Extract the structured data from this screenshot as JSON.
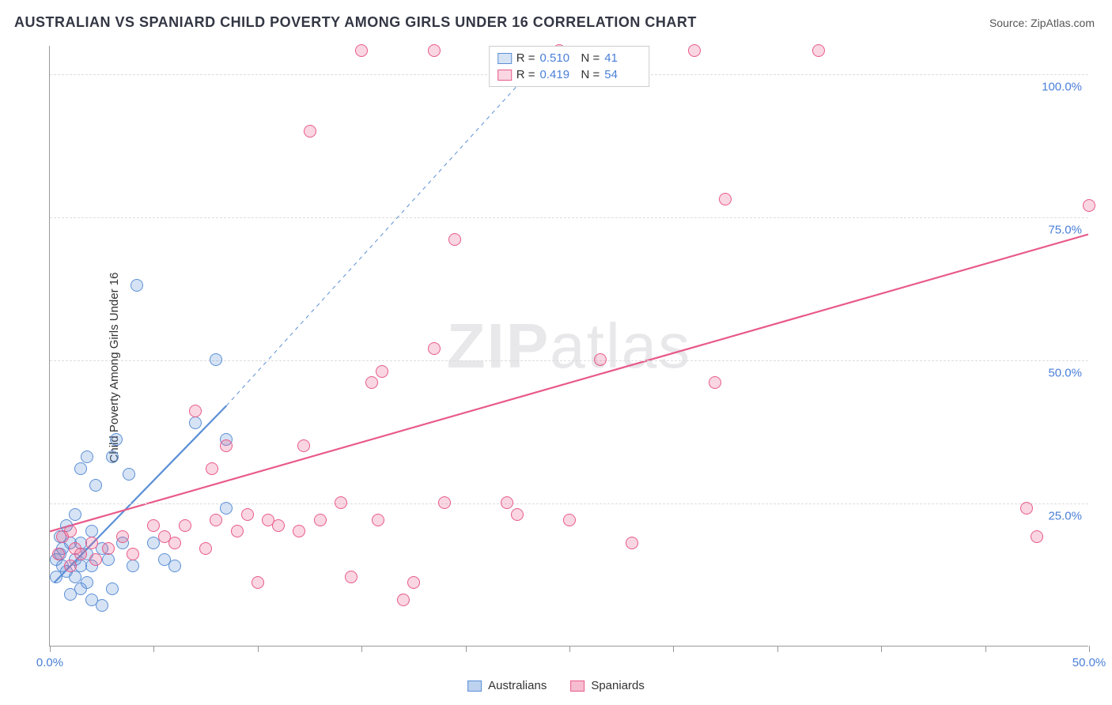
{
  "title": "AUSTRALIAN VS SPANIARD CHILD POVERTY AMONG GIRLS UNDER 16 CORRELATION CHART",
  "source_prefix": "Source: ",
  "source": "ZipAtlas.com",
  "watermark_a": "ZIP",
  "watermark_b": "atlas",
  "chart": {
    "type": "scatter",
    "ylabel": "Child Poverty Among Girls Under 16",
    "xlim": [
      0,
      50
    ],
    "ylim": [
      0,
      105
    ],
    "xtick_step": 5,
    "xtick_labels": {
      "0": "0.0%",
      "50": "50.0%"
    },
    "ytick_step": 25,
    "ytick_labels": {
      "25": "25.0%",
      "50": "50.0%",
      "75": "75.0%",
      "100": "100.0%"
    },
    "background_color": "#ffffff",
    "grid_color": "#dddddd",
    "marker_radius": 8,
    "marker_opacity_fill": 0.25,
    "marker_border_width": 1.2,
    "series": [
      {
        "name": "Australians",
        "color": "#5b8fd6",
        "fill": "rgba(91,143,214,0.25)",
        "r_label": "R =",
        "r": "0.510",
        "n_label": "N =",
        "n": "41",
        "trend": {
          "x1": 0.2,
          "y1": 11,
          "x2": 8.5,
          "y2": 42,
          "stroke_width": 2.2,
          "dash": "none"
        },
        "trend_ext": {
          "x1": 8.5,
          "y1": 42,
          "x2": 24,
          "y2": 104,
          "stroke_width": 1,
          "dash": "5,5"
        },
        "points": [
          [
            0.3,
            12
          ],
          [
            0.3,
            15
          ],
          [
            0.5,
            16
          ],
          [
            0.5,
            19
          ],
          [
            0.6,
            14
          ],
          [
            0.6,
            17
          ],
          [
            0.8,
            13
          ],
          [
            0.8,
            21
          ],
          [
            1.0,
            18
          ],
          [
            1.0,
            9
          ],
          [
            1.2,
            12
          ],
          [
            1.2,
            15
          ],
          [
            1.2,
            23
          ],
          [
            1.5,
            10
          ],
          [
            1.5,
            14
          ],
          [
            1.5,
            18
          ],
          [
            1.5,
            31
          ],
          [
            1.8,
            11
          ],
          [
            1.8,
            16
          ],
          [
            1.8,
            33
          ],
          [
            2.0,
            14
          ],
          [
            2.0,
            20
          ],
          [
            2.0,
            8
          ],
          [
            2.2,
            28
          ],
          [
            2.5,
            7
          ],
          [
            2.5,
            17
          ],
          [
            2.8,
            15
          ],
          [
            3.0,
            10
          ],
          [
            3.0,
            33
          ],
          [
            3.2,
            36
          ],
          [
            3.5,
            18
          ],
          [
            3.8,
            30
          ],
          [
            4.0,
            14
          ],
          [
            4.2,
            63
          ],
          [
            5.0,
            18
          ],
          [
            5.5,
            15
          ],
          [
            6.0,
            14
          ],
          [
            7.0,
            39
          ],
          [
            8.0,
            50
          ],
          [
            8.5,
            36
          ],
          [
            8.5,
            24
          ]
        ]
      },
      {
        "name": "Spaniards",
        "color": "#e85a8a",
        "fill": "rgba(232,90,138,0.25)",
        "r_label": "R =",
        "r": "0.419",
        "n_label": "N =",
        "n": "54",
        "trend": {
          "x1": 0,
          "y1": 20,
          "x2": 50,
          "y2": 72,
          "stroke_width": 2.2,
          "dash": "none"
        },
        "points": [
          [
            0.4,
            16
          ],
          [
            0.6,
            19
          ],
          [
            1.0,
            14
          ],
          [
            1.0,
            20
          ],
          [
            1.2,
            17
          ],
          [
            1.5,
            16
          ],
          [
            2.0,
            18
          ],
          [
            2.2,
            15
          ],
          [
            2.8,
            17
          ],
          [
            3.5,
            19
          ],
          [
            4.0,
            16
          ],
          [
            5.0,
            21
          ],
          [
            5.5,
            19
          ],
          [
            6.0,
            18
          ],
          [
            6.5,
            21
          ],
          [
            7.0,
            41
          ],
          [
            7.5,
            17
          ],
          [
            7.8,
            31
          ],
          [
            8.0,
            22
          ],
          [
            8.5,
            35
          ],
          [
            9.0,
            20
          ],
          [
            9.5,
            23
          ],
          [
            10.0,
            11
          ],
          [
            10.5,
            22
          ],
          [
            11.0,
            21
          ],
          [
            12.0,
            20
          ],
          [
            12.2,
            35
          ],
          [
            12.5,
            90
          ],
          [
            13.0,
            22
          ],
          [
            14.0,
            25
          ],
          [
            14.5,
            12
          ],
          [
            15.0,
            104
          ],
          [
            15.5,
            46
          ],
          [
            15.8,
            22
          ],
          [
            16.0,
            48
          ],
          [
            17.0,
            8
          ],
          [
            17.5,
            11
          ],
          [
            18.5,
            52
          ],
          [
            18.5,
            104
          ],
          [
            19.0,
            25
          ],
          [
            19.5,
            71
          ],
          [
            22.0,
            25
          ],
          [
            22.5,
            23
          ],
          [
            24.5,
            104
          ],
          [
            25.0,
            22
          ],
          [
            26.5,
            50
          ],
          [
            28.0,
            18
          ],
          [
            31.0,
            104
          ],
          [
            32.0,
            46
          ],
          [
            32.5,
            78
          ],
          [
            37.0,
            104
          ],
          [
            47.0,
            24
          ],
          [
            47.5,
            19
          ],
          [
            50.0,
            77
          ]
        ]
      }
    ]
  },
  "legend_bottom": [
    {
      "label": "Australians",
      "fill": "rgba(91,143,214,0.4)",
      "border": "#5b8fd6"
    },
    {
      "label": "Spaniards",
      "fill": "rgba(232,90,138,0.4)",
      "border": "#e85a8a"
    }
  ]
}
